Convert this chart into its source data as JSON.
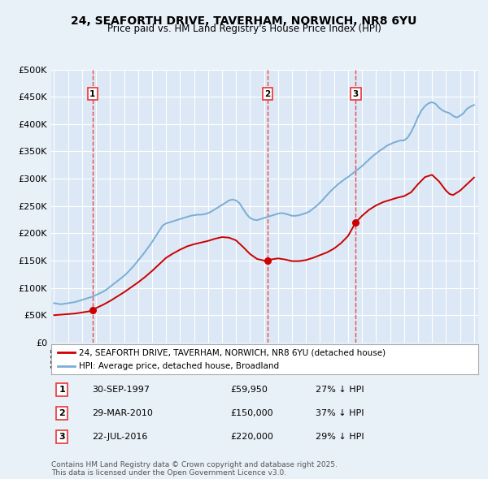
{
  "title": "24, SEAFORTH DRIVE, TAVERHAM, NORWICH, NR8 6YU",
  "subtitle": "Price paid vs. HM Land Registry's House Price Index (HPI)",
  "ylim": [
    0,
    500000
  ],
  "yticks": [
    0,
    50000,
    100000,
    150000,
    200000,
    250000,
    300000,
    350000,
    400000,
    450000,
    500000
  ],
  "ytick_labels": [
    "£0",
    "£50K",
    "£100K",
    "£150K",
    "£200K",
    "£250K",
    "£300K",
    "£350K",
    "£400K",
    "£450K",
    "£500K"
  ],
  "xlim_start": 1994.8,
  "xlim_end": 2025.3,
  "background_color": "#e8f0f8",
  "plot_bg_color": "#dce8f5",
  "grid_color": "#ffffff",
  "transactions": [
    {
      "num": 1,
      "date": "30-SEP-1997",
      "price": 59950,
      "year": 1997.75,
      "pct": "27%",
      "dir": "↓"
    },
    {
      "num": 2,
      "date": "29-MAR-2010",
      "price": 150000,
      "year": 2010.25,
      "pct": "37%",
      "dir": "↓"
    },
    {
      "num": 3,
      "date": "22-JUL-2016",
      "price": 220000,
      "year": 2016.55,
      "pct": "29%",
      "dir": "↓"
    }
  ],
  "red_line_label": "24, SEAFORTH DRIVE, TAVERHAM, NORWICH, NR8 6YU (detached house)",
  "blue_line_label": "HPI: Average price, detached house, Broadland",
  "footer": "Contains HM Land Registry data © Crown copyright and database right 2025.\nThis data is licensed under the Open Government Licence v3.0.",
  "hpi_color": "#7aadd4",
  "price_color": "#cc0000",
  "dashed_color": "#ee3333",
  "hpi_years": [
    1995.0,
    1995.25,
    1995.5,
    1995.75,
    1996.0,
    1996.25,
    1996.5,
    1996.75,
    1997.0,
    1997.25,
    1997.5,
    1997.75,
    1998.0,
    1998.25,
    1998.5,
    1998.75,
    1999.0,
    1999.25,
    1999.5,
    1999.75,
    2000.0,
    2000.25,
    2000.5,
    2000.75,
    2001.0,
    2001.25,
    2001.5,
    2001.75,
    2002.0,
    2002.25,
    2002.5,
    2002.75,
    2003.0,
    2003.25,
    2003.5,
    2003.75,
    2004.0,
    2004.25,
    2004.5,
    2004.75,
    2005.0,
    2005.25,
    2005.5,
    2005.75,
    2006.0,
    2006.25,
    2006.5,
    2006.75,
    2007.0,
    2007.25,
    2007.5,
    2007.75,
    2008.0,
    2008.25,
    2008.5,
    2008.75,
    2009.0,
    2009.25,
    2009.5,
    2009.75,
    2010.0,
    2010.25,
    2010.5,
    2010.75,
    2011.0,
    2011.25,
    2011.5,
    2011.75,
    2012.0,
    2012.25,
    2012.5,
    2012.75,
    2013.0,
    2013.25,
    2013.5,
    2013.75,
    2014.0,
    2014.25,
    2014.5,
    2014.75,
    2015.0,
    2015.25,
    2015.5,
    2015.75,
    2016.0,
    2016.25,
    2016.5,
    2016.75,
    2017.0,
    2017.25,
    2017.5,
    2017.75,
    2018.0,
    2018.25,
    2018.5,
    2018.75,
    2019.0,
    2019.25,
    2019.5,
    2019.75,
    2020.0,
    2020.25,
    2020.5,
    2020.75,
    2021.0,
    2021.25,
    2021.5,
    2021.75,
    2022.0,
    2022.25,
    2022.5,
    2022.75,
    2023.0,
    2023.25,
    2023.5,
    2023.75,
    2024.0,
    2024.25,
    2024.5,
    2024.75,
    2025.0
  ],
  "hpi_values": [
    72000,
    71000,
    70000,
    71000,
    72000,
    73000,
    74000,
    76000,
    78000,
    80000,
    82000,
    84000,
    87000,
    90000,
    93000,
    97000,
    102000,
    107000,
    112000,
    117000,
    122000,
    128000,
    135000,
    142000,
    150000,
    158000,
    166000,
    175000,
    184000,
    194000,
    204000,
    214000,
    218000,
    220000,
    222000,
    224000,
    226000,
    228000,
    230000,
    232000,
    233000,
    234000,
    234000,
    235000,
    237000,
    240000,
    244000,
    248000,
    252000,
    256000,
    260000,
    262000,
    260000,
    255000,
    245000,
    235000,
    228000,
    225000,
    224000,
    226000,
    228000,
    230000,
    232000,
    234000,
    236000,
    237000,
    236000,
    234000,
    232000,
    232000,
    233000,
    235000,
    237000,
    240000,
    245000,
    250000,
    256000,
    263000,
    270000,
    277000,
    283000,
    289000,
    294000,
    299000,
    303000,
    308000,
    313000,
    318000,
    323000,
    329000,
    335000,
    341000,
    346000,
    351000,
    355000,
    360000,
    363000,
    366000,
    368000,
    370000,
    370000,
    375000,
    385000,
    398000,
    413000,
    425000,
    433000,
    438000,
    440000,
    437000,
    430000,
    425000,
    422000,
    420000,
    415000,
    412000,
    415000,
    420000,
    428000,
    432000,
    435000
  ],
  "red_years": [
    1995.0,
    1995.5,
    1996.0,
    1996.5,
    1997.0,
    1997.5,
    1997.75,
    1998.0,
    1998.5,
    1999.0,
    1999.5,
    2000.0,
    2000.5,
    2001.0,
    2001.5,
    2002.0,
    2002.5,
    2003.0,
    2003.5,
    2004.0,
    2004.5,
    2005.0,
    2005.5,
    2006.0,
    2006.5,
    2007.0,
    2007.5,
    2008.0,
    2008.5,
    2009.0,
    2009.5,
    2010.0,
    2010.25,
    2010.5,
    2011.0,
    2011.5,
    2012.0,
    2012.5,
    2013.0,
    2013.5,
    2014.0,
    2014.5,
    2015.0,
    2015.5,
    2016.0,
    2016.55,
    2017.0,
    2017.5,
    2018.0,
    2018.5,
    2019.0,
    2019.5,
    2020.0,
    2020.5,
    2021.0,
    2021.5,
    2022.0,
    2022.5,
    2023.0,
    2023.25,
    2023.5,
    2024.0,
    2024.5,
    2025.0
  ],
  "red_values": [
    50000,
    51000,
    52000,
    53000,
    55000,
    57000,
    59950,
    63000,
    69000,
    76000,
    84000,
    92000,
    101000,
    110000,
    120000,
    131000,
    143000,
    155000,
    163000,
    170000,
    176000,
    180000,
    183000,
    186000,
    190000,
    193000,
    192000,
    187000,
    175000,
    162000,
    153000,
    150000,
    150000,
    152000,
    154000,
    152000,
    149000,
    149000,
    151000,
    155000,
    160000,
    165000,
    172000,
    182000,
    195000,
    220000,
    232000,
    243000,
    251000,
    257000,
    261000,
    265000,
    268000,
    275000,
    290000,
    303000,
    307000,
    295000,
    278000,
    272000,
    270000,
    278000,
    290000,
    302000
  ]
}
